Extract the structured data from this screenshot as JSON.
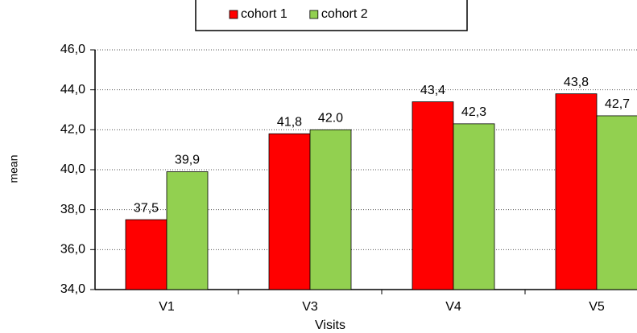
{
  "chart_data": {
    "type": "bar",
    "categories": [
      "V1",
      "V3",
      "V4",
      "V5"
    ],
    "series": [
      {
        "name": "cohort 1",
        "color": "#ff0000",
        "values": [
          37.5,
          41.8,
          43.4,
          43.8
        ],
        "value_labels": [
          "37,5",
          "41,8",
          "43,4",
          "43,8"
        ]
      },
      {
        "name": "cohort 2",
        "color": "#92d050",
        "values": [
          39.9,
          42.0,
          42.3,
          42.7
        ],
        "value_labels": [
          "39,9",
          "42.0",
          "42,3",
          "42,7"
        ]
      }
    ],
    "x_label": "Visits",
    "y_label": "mean",
    "ylim": [
      34,
      46
    ],
    "yticks": [
      {
        "value": 34,
        "label": "34,0"
      },
      {
        "value": 36,
        "label": "36,0"
      },
      {
        "value": 38,
        "label": "38,0"
      },
      {
        "value": 40,
        "label": "40,0"
      },
      {
        "value": 42,
        "label": "42,0"
      },
      {
        "value": 44,
        "label": "44,0"
      },
      {
        "value": 46,
        "label": "46,0"
      }
    ],
    "grid": true,
    "legend": "top"
  }
}
